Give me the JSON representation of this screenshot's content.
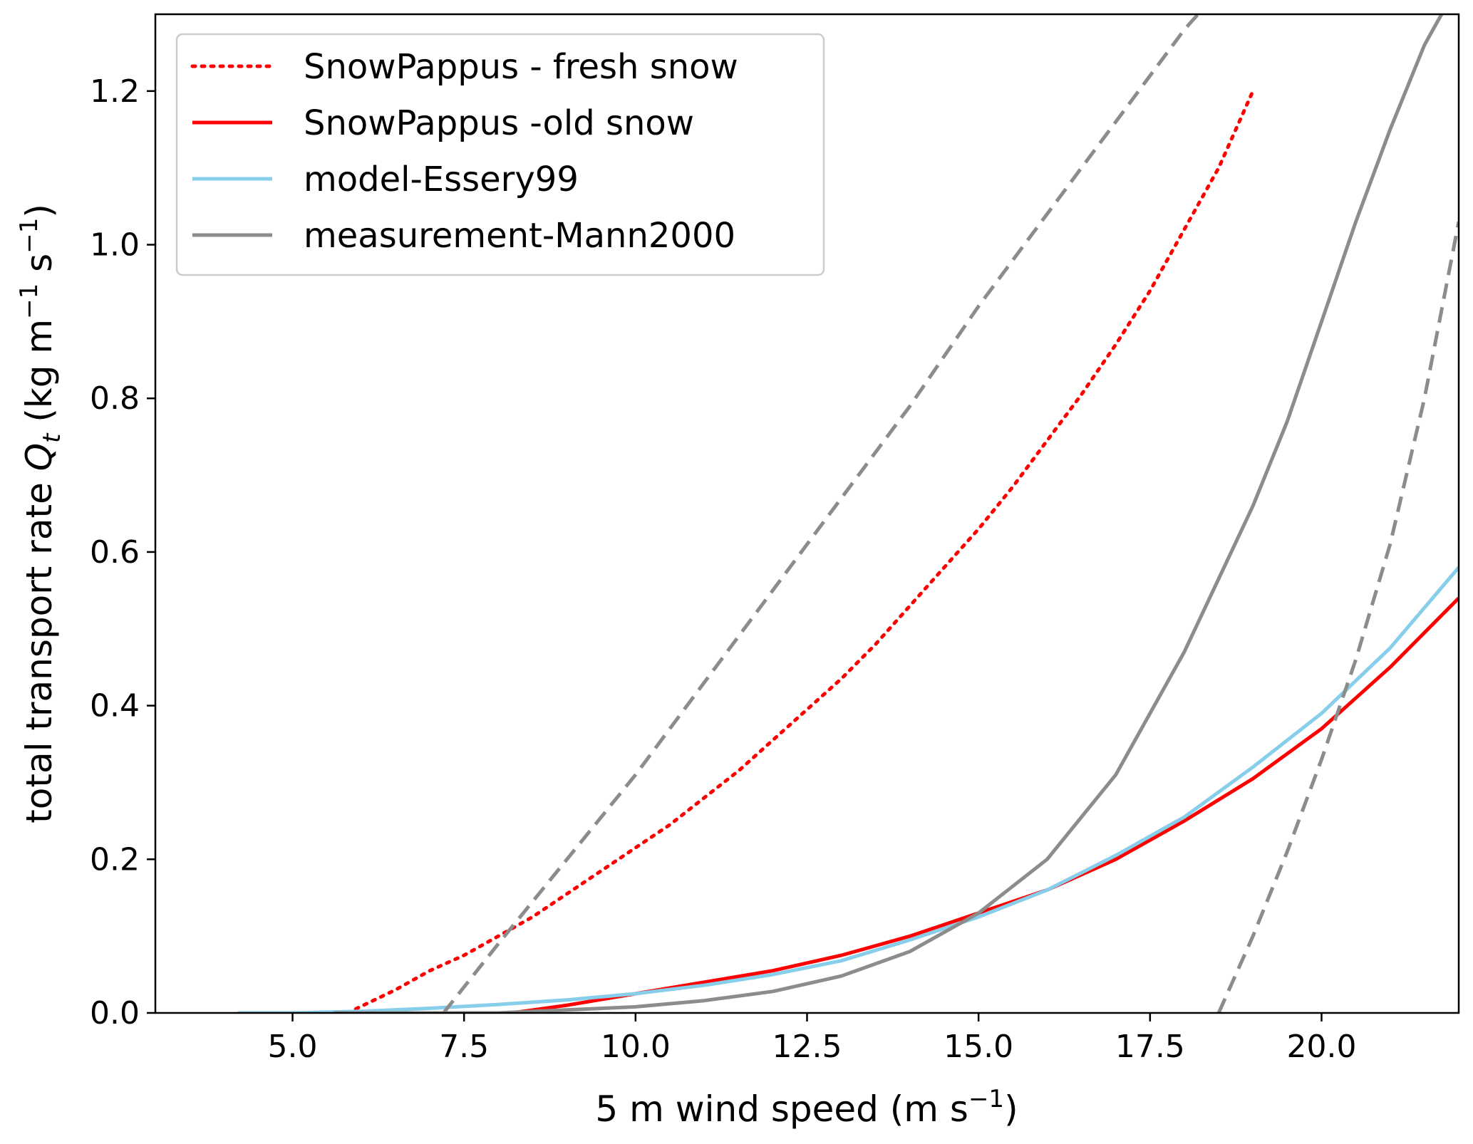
{
  "chart_data": {
    "type": "line",
    "xlabel": {
      "main": "5 m wind speed (m s",
      "sup": "−1",
      "close": ")"
    },
    "ylabel": {
      "pre": "total transport rate ",
      "sym": "Q",
      "sub": "t",
      "mid": " (kg m",
      "sup1": "−1",
      "mid2": " s",
      "sup2": "−1",
      "close": ")"
    },
    "xlim": [
      3.0,
      22.0
    ],
    "ylim": [
      0.0,
      1.3
    ],
    "xticks": [
      5.0,
      7.5,
      10.0,
      12.5,
      15.0,
      17.5,
      20.0
    ],
    "xtick_labels": [
      "5.0",
      "7.5",
      "10.0",
      "12.5",
      "15.0",
      "17.5",
      "20.0"
    ],
    "yticks": [
      0.0,
      0.2,
      0.4,
      0.6,
      0.8,
      1.0,
      1.2
    ],
    "ytick_labels": [
      "0.0",
      "0.2",
      "0.4",
      "0.6",
      "0.8",
      "1.0",
      "1.2"
    ],
    "grid": false,
    "legend_placement": "top-left",
    "series": [
      {
        "name": "SnowPappus - fresh snow",
        "color": "#ff0000",
        "style": "dotted",
        "in_legend": true,
        "x": [
          5.8,
          6.5,
          7.0,
          7.5,
          8.0,
          8.5,
          9.0,
          9.5,
          10.0,
          10.5,
          11.0,
          11.5,
          12.0,
          12.5,
          13.0,
          13.5,
          14.0,
          14.5,
          15.0,
          15.5,
          16.0,
          16.5,
          17.0,
          17.5,
          18.0,
          18.5,
          19.0
        ],
        "y": [
          0.0,
          0.03,
          0.055,
          0.075,
          0.1,
          0.125,
          0.155,
          0.185,
          0.215,
          0.245,
          0.28,
          0.315,
          0.355,
          0.395,
          0.435,
          0.48,
          0.53,
          0.58,
          0.63,
          0.685,
          0.745,
          0.805,
          0.87,
          0.94,
          1.02,
          1.1,
          1.2
        ]
      },
      {
        "name": "SnowPappus -old snow",
        "color": "#ff0000",
        "style": "solid",
        "in_legend": true,
        "x": [
          8.2,
          9.0,
          10.0,
          11.0,
          12.0,
          13.0,
          14.0,
          15.0,
          16.0,
          17.0,
          18.0,
          19.0,
          20.0,
          21.0,
          22.0
        ],
        "y": [
          0.0,
          0.01,
          0.025,
          0.04,
          0.055,
          0.075,
          0.1,
          0.13,
          0.16,
          0.2,
          0.25,
          0.305,
          0.37,
          0.45,
          0.54
        ]
      },
      {
        "name": "model-Essery99",
        "color": "#87ceeb",
        "style": "solid",
        "in_legend": true,
        "x": [
          4.2,
          5.0,
          6.0,
          7.0,
          8.0,
          9.0,
          10.0,
          11.0,
          12.0,
          13.0,
          14.0,
          15.0,
          16.0,
          17.0,
          18.0,
          19.0,
          20.0,
          21.0,
          22.0
        ],
        "y": [
          0.0,
          0.0,
          0.002,
          0.006,
          0.011,
          0.017,
          0.025,
          0.036,
          0.05,
          0.068,
          0.095,
          0.125,
          0.16,
          0.205,
          0.255,
          0.32,
          0.39,
          0.475,
          0.58
        ]
      },
      {
        "name": "measurement-Mann2000",
        "color": "#8c8c8c",
        "style": "solid",
        "in_legend": true,
        "x": [
          5.6,
          7.0,
          8.0,
          9.0,
          10.0,
          11.0,
          12.0,
          13.0,
          14.0,
          15.0,
          16.0,
          17.0,
          18.0,
          19.0,
          19.5,
          20.0,
          20.5,
          21.0,
          21.5,
          21.75
        ],
        "y": [
          0.0,
          0.0,
          0.0,
          0.004,
          0.008,
          0.016,
          0.028,
          0.048,
          0.08,
          0.13,
          0.2,
          0.31,
          0.47,
          0.66,
          0.77,
          0.9,
          1.03,
          1.15,
          1.26,
          1.3
        ]
      },
      {
        "name": "",
        "color": "#8c8c8c",
        "style": "dashed",
        "in_legend": false,
        "x": [
          7.2,
          8.0,
          9.0,
          10.0,
          11.0,
          12.0,
          13.0,
          14.0,
          15.0,
          16.0,
          17.0,
          18.0,
          18.2
        ],
        "y": [
          0.0,
          0.09,
          0.2,
          0.31,
          0.43,
          0.55,
          0.67,
          0.79,
          0.92,
          1.04,
          1.16,
          1.28,
          1.3
        ]
      },
      {
        "name": "",
        "color": "#8c8c8c",
        "style": "dashed",
        "in_legend": false,
        "x": [
          18.5,
          19.0,
          19.5,
          20.0,
          20.5,
          21.0,
          21.5,
          22.0
        ],
        "y": [
          0.0,
          0.1,
          0.21,
          0.33,
          0.46,
          0.61,
          0.8,
          1.03
        ]
      }
    ]
  }
}
